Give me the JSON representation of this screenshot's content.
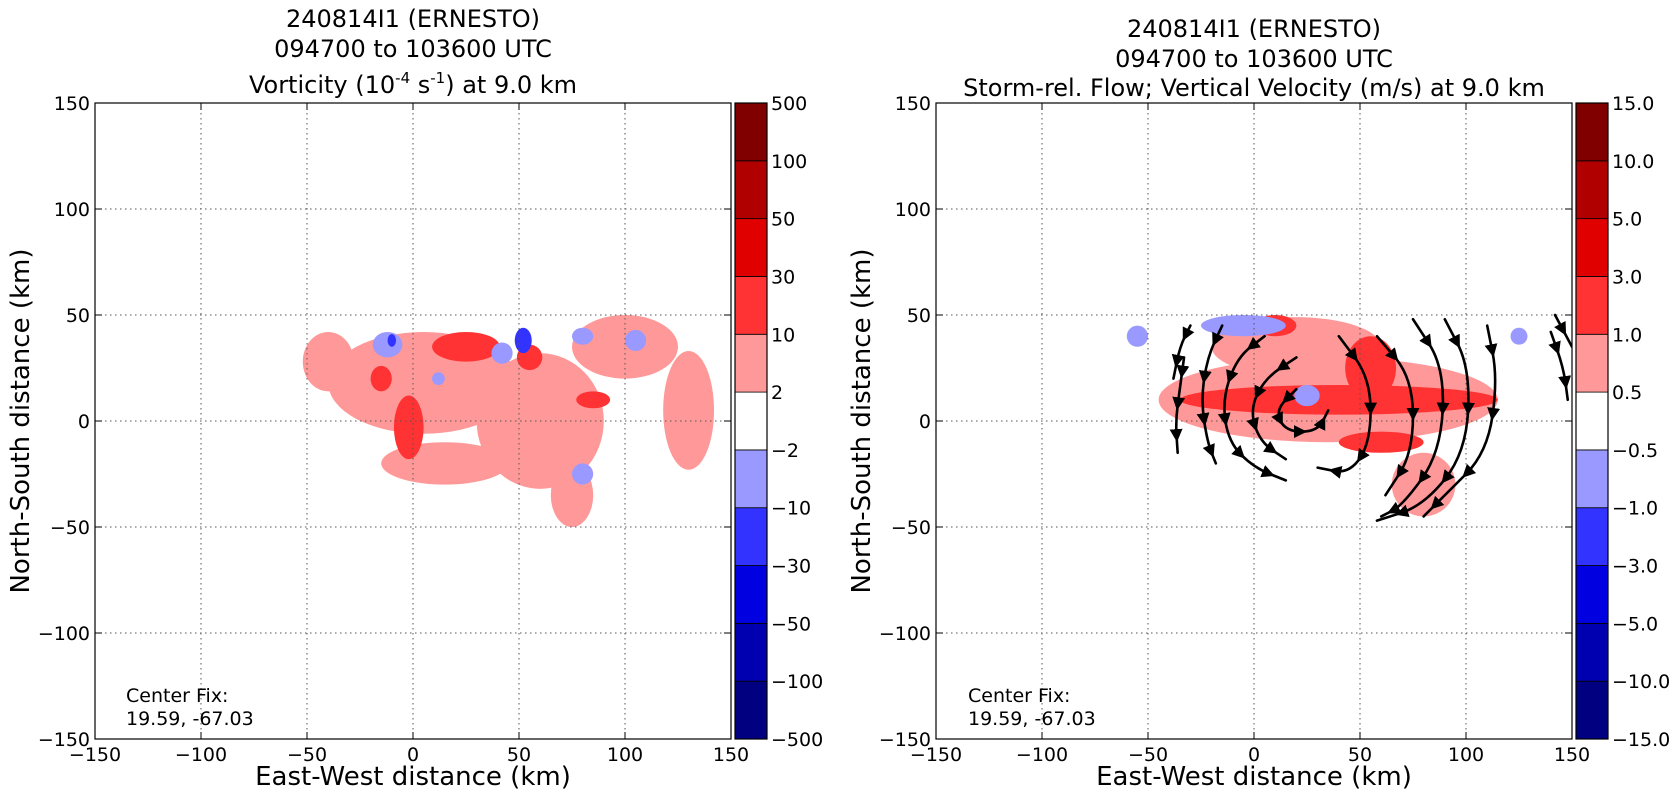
{
  "chart_data": [
    {
      "type": "heatmap",
      "title_lines": [
        "240814I1 (ERNESTO)",
        "094700 to 103600 UTC"
      ],
      "title_field": {
        "prefix": "Vorticity (10",
        "exp1": "-4",
        "mid": " s",
        "exp2": "-1",
        "suffix": ") at 9.0 km"
      },
      "xlabel": "East-West distance (km)",
      "ylabel": "North-South distance (km)",
      "xlim": [
        -150,
        150
      ],
      "ylim": [
        -150,
        150
      ],
      "xticks": [
        -150,
        -100,
        -50,
        0,
        50,
        100,
        150
      ],
      "yticks": [
        -150,
        -100,
        -50,
        0,
        50,
        100,
        150
      ],
      "xtick_labels": [
        "−150",
        "−100",
        "−50",
        "0",
        "50",
        "100",
        "150"
      ],
      "ytick_labels": [
        "−150",
        "−100",
        "−50",
        "0",
        "50",
        "100",
        "150"
      ],
      "grid": true,
      "annotation": [
        "Center Fix:",
        "19.59, -67.03"
      ],
      "colorbar": {
        "bounds": [
          "−500",
          "−100",
          "−50",
          "−30",
          "−10",
          "−2",
          "2",
          "10",
          "30",
          "50",
          "100",
          "500"
        ],
        "colors": [
          "#000080",
          "#0000b0",
          "#0000e0",
          "#3333ff",
          "#9999ff",
          "#ffffff",
          "#ff9999",
          "#ff3333",
          "#e00000",
          "#b00000",
          "#800000"
        ]
      },
      "regions": [
        {
          "level": 1,
          "color": "#ff9999",
          "cx": 5,
          "cy": 18,
          "rx": 45,
          "ry": 24
        },
        {
          "level": 1,
          "color": "#ff9999",
          "cx": -40,
          "cy": 28,
          "rx": 12,
          "ry": 14
        },
        {
          "level": 1,
          "color": "#ff9999",
          "cx": 60,
          "cy": 0,
          "rx": 30,
          "ry": 32
        },
        {
          "level": 1,
          "color": "#ff9999",
          "cx": 100,
          "cy": 35,
          "rx": 25,
          "ry": 15
        },
        {
          "level": 1,
          "color": "#ff9999",
          "cx": 130,
          "cy": 5,
          "rx": 12,
          "ry": 28
        },
        {
          "level": 1,
          "color": "#ff9999",
          "cx": 15,
          "cy": -20,
          "rx": 30,
          "ry": 10
        },
        {
          "level": 1,
          "color": "#ff9999",
          "cx": 75,
          "cy": -35,
          "rx": 10,
          "ry": 15
        },
        {
          "level": 2,
          "color": "#ff3333",
          "cx": 25,
          "cy": 35,
          "rx": 16,
          "ry": 7
        },
        {
          "level": 2,
          "color": "#ff3333",
          "cx": -2,
          "cy": -3,
          "rx": 7,
          "ry": 15
        },
        {
          "level": 2,
          "color": "#ff3333",
          "cx": -15,
          "cy": 20,
          "rx": 5,
          "ry": 6
        },
        {
          "level": 2,
          "color": "#ff3333",
          "cx": 55,
          "cy": 30,
          "rx": 6,
          "ry": 6
        },
        {
          "level": 2,
          "color": "#ff3333",
          "cx": 85,
          "cy": 10,
          "rx": 8,
          "ry": 4
        },
        {
          "level": -1,
          "color": "#9999ff",
          "cx": -12,
          "cy": 36,
          "rx": 7,
          "ry": 6
        },
        {
          "level": -1,
          "color": "#9999ff",
          "cx": 42,
          "cy": 32,
          "rx": 5,
          "ry": 5
        },
        {
          "level": -1,
          "color": "#9999ff",
          "cx": 80,
          "cy": 40,
          "rx": 5,
          "ry": 4
        },
        {
          "level": -1,
          "color": "#9999ff",
          "cx": 105,
          "cy": 38,
          "rx": 5,
          "ry": 5
        },
        {
          "level": -1,
          "color": "#9999ff",
          "cx": 80,
          "cy": -25,
          "rx": 5,
          "ry": 5
        },
        {
          "level": -1,
          "color": "#9999ff",
          "cx": 12,
          "cy": 20,
          "rx": 3,
          "ry": 3
        },
        {
          "level": -2,
          "color": "#3333ff",
          "cx": 52,
          "cy": 38,
          "rx": 4,
          "ry": 6
        },
        {
          "level": -2,
          "color": "#3333ff",
          "cx": -10,
          "cy": 38,
          "rx": 2,
          "ry": 3
        }
      ]
    },
    {
      "type": "heatmap",
      "title_lines": [
        "240814I1 (ERNESTO)",
        "094700 to 103600 UTC",
        "Storm-rel. Flow; Vertical Velocity (m/s) at 9.0 km"
      ],
      "xlabel": "East-West distance (km)",
      "ylabel": "North-South distance (km)",
      "xlim": [
        -150,
        150
      ],
      "ylim": [
        -150,
        150
      ],
      "xticks": [
        -150,
        -100,
        -50,
        0,
        50,
        100,
        150
      ],
      "yticks": [
        -150,
        -100,
        -50,
        0,
        50,
        100,
        150
      ],
      "xtick_labels": [
        "−150",
        "−100",
        "−50",
        "0",
        "50",
        "100",
        "150"
      ],
      "ytick_labels": [
        "−150",
        "−100",
        "−50",
        "0",
        "50",
        "100",
        "150"
      ],
      "grid": true,
      "annotation": [
        "Center Fix:",
        "19.59, -67.03"
      ],
      "colorbar": {
        "bounds": [
          "−15.0",
          "−10.0",
          "−5.0",
          "−3.0",
          "−1.0",
          "−0.5",
          "0.5",
          "1.0",
          "3.0",
          "5.0",
          "10.0",
          "15.0"
        ],
        "colors": [
          "#000080",
          "#0000b0",
          "#0000e0",
          "#3333ff",
          "#9999ff",
          "#ffffff",
          "#ff9999",
          "#ff3333",
          "#e00000",
          "#b00000",
          "#800000"
        ]
      },
      "regions": [
        {
          "level": 1,
          "color": "#ff9999",
          "cx": 35,
          "cy": 10,
          "rx": 80,
          "ry": 20
        },
        {
          "level": 1,
          "color": "#ff9999",
          "cx": 20,
          "cy": 35,
          "rx": 40,
          "ry": 14
        },
        {
          "level": 1,
          "color": "#ff9999",
          "cx": 80,
          "cy": -30,
          "rx": 15,
          "ry": 15
        },
        {
          "level": 2,
          "color": "#ff3333",
          "cx": 40,
          "cy": 10,
          "rx": 75,
          "ry": 7
        },
        {
          "level": 2,
          "color": "#ff3333",
          "cx": 55,
          "cy": 25,
          "rx": 12,
          "ry": 15
        },
        {
          "level": 2,
          "color": "#ff3333",
          "cx": 10,
          "cy": 45,
          "rx": 10,
          "ry": 5
        },
        {
          "level": 2,
          "color": "#ff3333",
          "cx": 60,
          "cy": -10,
          "rx": 20,
          "ry": 5
        },
        {
          "level": -1,
          "color": "#9999ff",
          "cx": 25,
          "cy": 12,
          "rx": 6,
          "ry": 5
        },
        {
          "level": -1,
          "color": "#9999ff",
          "cx": -5,
          "cy": 45,
          "rx": 20,
          "ry": 5
        },
        {
          "level": -1,
          "color": "#9999ff",
          "cx": -55,
          "cy": 40,
          "rx": 5,
          "ry": 5
        },
        {
          "level": -1,
          "color": "#9999ff",
          "cx": 125,
          "cy": 40,
          "rx": 4,
          "ry": 4
        }
      ],
      "streamlines": [
        [
          [
            -33,
            30
          ],
          [
            -35,
            15
          ],
          [
            -37,
            0
          ],
          [
            -36,
            -15
          ]
        ],
        [
          [
            -30,
            45
          ],
          [
            -35,
            35
          ],
          [
            -38,
            20
          ]
        ],
        [
          [
            -15,
            45
          ],
          [
            -22,
            30
          ],
          [
            -25,
            10
          ],
          [
            -22,
            -10
          ],
          [
            -18,
            -20
          ]
        ],
        [
          [
            5,
            40
          ],
          [
            -8,
            30
          ],
          [
            -15,
            10
          ],
          [
            -12,
            -10
          ],
          [
            0,
            -22
          ],
          [
            15,
            -28
          ]
        ],
        [
          [
            20,
            30
          ],
          [
            5,
            20
          ],
          [
            -2,
            5
          ],
          [
            3,
            -10
          ],
          [
            15,
            -18
          ]
        ],
        [
          [
            20,
            15
          ],
          [
            10,
            5
          ],
          [
            15,
            -5
          ],
          [
            30,
            -5
          ],
          [
            35,
            5
          ]
        ],
        [
          [
            40,
            40
          ],
          [
            55,
            20
          ],
          [
            55,
            -10
          ],
          [
            45,
            -25
          ],
          [
            30,
            -22
          ]
        ],
        [
          [
            58,
            40
          ],
          [
            75,
            20
          ],
          [
            75,
            -15
          ],
          [
            62,
            -35
          ]
        ],
        [
          [
            75,
            48
          ],
          [
            90,
            25
          ],
          [
            88,
            -15
          ],
          [
            70,
            -40
          ],
          [
            60,
            -45
          ]
        ],
        [
          [
            90,
            48
          ],
          [
            102,
            25
          ],
          [
            100,
            -15
          ],
          [
            80,
            -40
          ],
          [
            58,
            -47
          ]
        ],
        [
          [
            110,
            45
          ],
          [
            115,
            20
          ],
          [
            110,
            -15
          ],
          [
            90,
            -35
          ],
          [
            80,
            -45
          ]
        ],
        [
          [
            142,
            50
          ],
          [
            150,
            35
          ]
        ],
        [
          [
            140,
            42
          ],
          [
            146,
            25
          ],
          [
            148,
            10
          ]
        ]
      ]
    }
  ]
}
